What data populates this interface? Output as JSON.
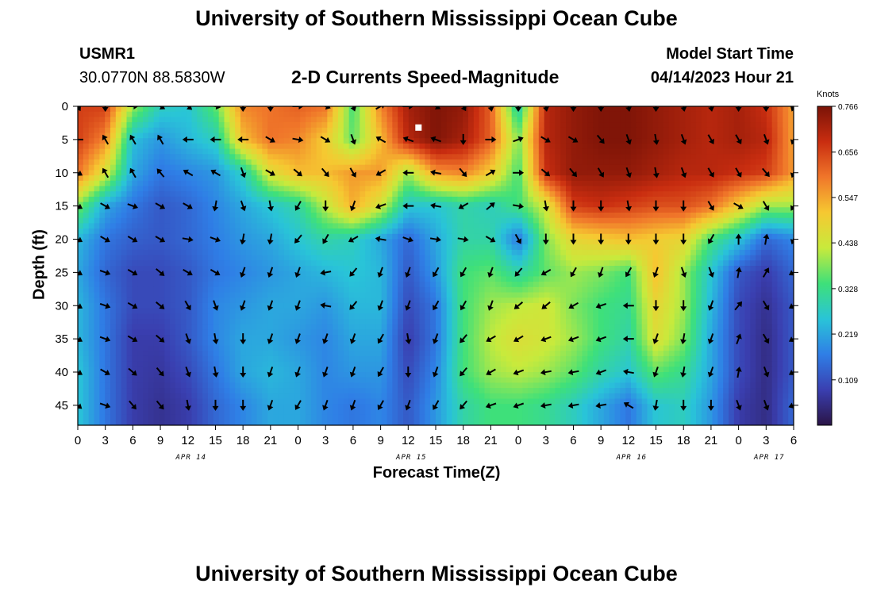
{
  "header": {
    "title": "University of Southern Mississippi Ocean Cube",
    "station_id": "USMR1",
    "coordinates": "30.0770N  88.5830W",
    "subtitle": "2-D Currents Speed-Magnitude",
    "model_start_label": "Model Start Time",
    "model_start_value": "04/14/2023 Hour 21"
  },
  "footer": {
    "title": "University of Southern Mississippi Ocean Cube"
  },
  "colors": {
    "colormap": [
      "#2a1446",
      "#3a3fb0",
      "#2f7ee6",
      "#29c4d8",
      "#3ee07a",
      "#c8ea3c",
      "#f6c831",
      "#f0762a",
      "#c92d10",
      "#7a1307"
    ]
  },
  "chart_data": {
    "type": "heatmap",
    "title": "2-D Currents Speed-Magnitude",
    "xlabel": "Forecast Time(Z)",
    "ylabel": "Depth (ft)",
    "x_ticks": [
      "0",
      "3",
      "6",
      "9",
      "12",
      "15",
      "18",
      "21",
      "0",
      "3",
      "6",
      "9",
      "12",
      "15",
      "18",
      "21",
      "0",
      "3",
      "6",
      "9",
      "12",
      "15",
      "18",
      "21",
      "0",
      "3",
      "6"
    ],
    "date_labels": [
      {
        "label": "APR 14",
        "x_hour": 12
      },
      {
        "label": "APR 15",
        "x_hour": 36
      },
      {
        "label": "APR 16",
        "x_hour": 60
      },
      {
        "label": "APR 17",
        "x_hour": 75
      }
    ],
    "x_range_hours": [
      0,
      78
    ],
    "y_ticks": [
      0,
      5,
      10,
      15,
      20,
      25,
      30,
      35,
      40,
      45
    ],
    "y_range_ft": [
      0,
      48
    ],
    "colorbar": {
      "label": "Knots",
      "range": [
        0,
        0.766
      ],
      "ticks": [
        "0.766",
        "0.656",
        "0.547",
        "0.438",
        "0.328",
        "0.219",
        "0.109"
      ]
    },
    "grid_hours": [
      0,
      3,
      6,
      9,
      12,
      15,
      18,
      21,
      24,
      27,
      30,
      33,
      36,
      39,
      42,
      45,
      48,
      51,
      54,
      57,
      60,
      63,
      66,
      69,
      72,
      75,
      78
    ],
    "grid_depths": [
      0,
      5,
      10,
      15,
      20,
      25,
      30,
      35,
      40,
      45
    ],
    "speed": [
      [
        0.66,
        0.66,
        0.4,
        0.28,
        0.26,
        0.36,
        0.58,
        0.6,
        0.62,
        0.6,
        0.34,
        0.58,
        0.72,
        0.76,
        0.74,
        0.62,
        0.28,
        0.7,
        0.74,
        0.76,
        0.76,
        0.74,
        0.72,
        0.7,
        0.72,
        0.68,
        0.55
      ],
      [
        0.66,
        0.58,
        0.25,
        0.2,
        0.24,
        0.28,
        0.52,
        0.6,
        0.58,
        0.5,
        0.36,
        0.52,
        0.7,
        0.76,
        0.72,
        0.62,
        0.38,
        0.7,
        0.74,
        0.76,
        0.76,
        0.74,
        0.72,
        0.7,
        0.72,
        0.7,
        0.55
      ],
      [
        0.6,
        0.45,
        0.22,
        0.16,
        0.18,
        0.2,
        0.28,
        0.46,
        0.52,
        0.52,
        0.56,
        0.56,
        0.4,
        0.56,
        0.58,
        0.5,
        0.34,
        0.68,
        0.74,
        0.74,
        0.74,
        0.72,
        0.7,
        0.7,
        0.68,
        0.66,
        0.56
      ],
      [
        0.38,
        0.22,
        0.16,
        0.12,
        0.14,
        0.18,
        0.22,
        0.26,
        0.3,
        0.42,
        0.54,
        0.44,
        0.26,
        0.26,
        0.3,
        0.28,
        0.34,
        0.44,
        0.66,
        0.68,
        0.66,
        0.64,
        0.64,
        0.6,
        0.5,
        0.4,
        0.4
      ],
      [
        0.24,
        0.16,
        0.13,
        0.12,
        0.14,
        0.17,
        0.2,
        0.22,
        0.26,
        0.3,
        0.28,
        0.22,
        0.14,
        0.22,
        0.3,
        0.3,
        0.16,
        0.38,
        0.48,
        0.5,
        0.52,
        0.5,
        0.48,
        0.34,
        0.26,
        0.14,
        0.18
      ],
      [
        0.22,
        0.14,
        0.1,
        0.1,
        0.12,
        0.16,
        0.18,
        0.2,
        0.22,
        0.24,
        0.26,
        0.24,
        0.12,
        0.2,
        0.34,
        0.36,
        0.3,
        0.36,
        0.4,
        0.38,
        0.34,
        0.52,
        0.4,
        0.26,
        0.12,
        0.08,
        0.14
      ],
      [
        0.24,
        0.16,
        0.1,
        0.1,
        0.12,
        0.18,
        0.2,
        0.22,
        0.22,
        0.2,
        0.24,
        0.24,
        0.1,
        0.16,
        0.34,
        0.4,
        0.42,
        0.44,
        0.38,
        0.34,
        0.32,
        0.48,
        0.4,
        0.24,
        0.1,
        0.06,
        0.12
      ],
      [
        0.24,
        0.16,
        0.08,
        0.08,
        0.12,
        0.18,
        0.22,
        0.22,
        0.2,
        0.18,
        0.22,
        0.22,
        0.08,
        0.16,
        0.34,
        0.42,
        0.46,
        0.44,
        0.4,
        0.34,
        0.3,
        0.46,
        0.38,
        0.22,
        0.1,
        0.05,
        0.12
      ],
      [
        0.26,
        0.16,
        0.08,
        0.07,
        0.1,
        0.16,
        0.22,
        0.24,
        0.22,
        0.18,
        0.2,
        0.2,
        0.1,
        0.18,
        0.34,
        0.4,
        0.42,
        0.4,
        0.36,
        0.3,
        0.26,
        0.36,
        0.32,
        0.22,
        0.1,
        0.05,
        0.12
      ],
      [
        0.26,
        0.16,
        0.08,
        0.06,
        0.08,
        0.14,
        0.18,
        0.22,
        0.22,
        0.18,
        0.16,
        0.18,
        0.12,
        0.2,
        0.3,
        0.34,
        0.34,
        0.32,
        0.28,
        0.22,
        0.16,
        0.26,
        0.28,
        0.2,
        0.08,
        0.05,
        0.14
      ]
    ],
    "direction_deg": [
      [
        150,
        180,
        90,
        120,
        130,
        100,
        180,
        180,
        90,
        110,
        160,
        60,
        90,
        120,
        150,
        170,
        180,
        170,
        180,
        180,
        170,
        180,
        170,
        170,
        180,
        180,
        200
      ],
      [
        270,
        330,
        330,
        330,
        270,
        270,
        270,
        120,
        100,
        120,
        160,
        300,
        290,
        290,
        180,
        90,
        70,
        120,
        120,
        140,
        160,
        170,
        160,
        150,
        150,
        160,
        200
      ],
      [
        120,
        330,
        330,
        320,
        300,
        300,
        160,
        120,
        130,
        140,
        150,
        240,
        270,
        280,
        140,
        60,
        90,
        130,
        140,
        150,
        160,
        170,
        160,
        150,
        150,
        140,
        200
      ],
      [
        120,
        120,
        110,
        120,
        120,
        190,
        160,
        170,
        210,
        180,
        200,
        250,
        270,
        280,
        240,
        50,
        100,
        170,
        180,
        180,
        170,
        180,
        180,
        150,
        120,
        150,
        210
      ],
      [
        120,
        120,
        120,
        120,
        100,
        110,
        190,
        190,
        220,
        210,
        240,
        280,
        110,
        100,
        100,
        120,
        150,
        180,
        180,
        180,
        180,
        180,
        180,
        210,
        0,
        10,
        200
      ],
      [
        120,
        110,
        120,
        130,
        120,
        120,
        200,
        200,
        200,
        260,
        220,
        200,
        200,
        210,
        210,
        200,
        220,
        240,
        210,
        200,
        210,
        200,
        160,
        160,
        10,
        30,
        240
      ],
      [
        120,
        110,
        120,
        130,
        150,
        160,
        200,
        200,
        200,
        280,
        220,
        200,
        200,
        210,
        210,
        200,
        230,
        230,
        240,
        250,
        270,
        180,
        180,
        200,
        40,
        150,
        240
      ],
      [
        120,
        110,
        120,
        130,
        160,
        170,
        180,
        200,
        200,
        200,
        200,
        210,
        170,
        200,
        220,
        240,
        240,
        250,
        250,
        250,
        270,
        200,
        190,
        200,
        20,
        150,
        240
      ],
      [
        120,
        120,
        130,
        140,
        160,
        170,
        180,
        200,
        200,
        200,
        200,
        210,
        180,
        200,
        220,
        240,
        250,
        260,
        260,
        250,
        280,
        200,
        190,
        200,
        10,
        160,
        240
      ],
      [
        130,
        110,
        140,
        140,
        170,
        180,
        180,
        200,
        210,
        200,
        200,
        210,
        200,
        210,
        220,
        250,
        250,
        260,
        260,
        260,
        300,
        190,
        180,
        180,
        160,
        160,
        250
      ]
    ],
    "marker": {
      "x_hour": 36,
      "depth_ft": 2
    }
  }
}
